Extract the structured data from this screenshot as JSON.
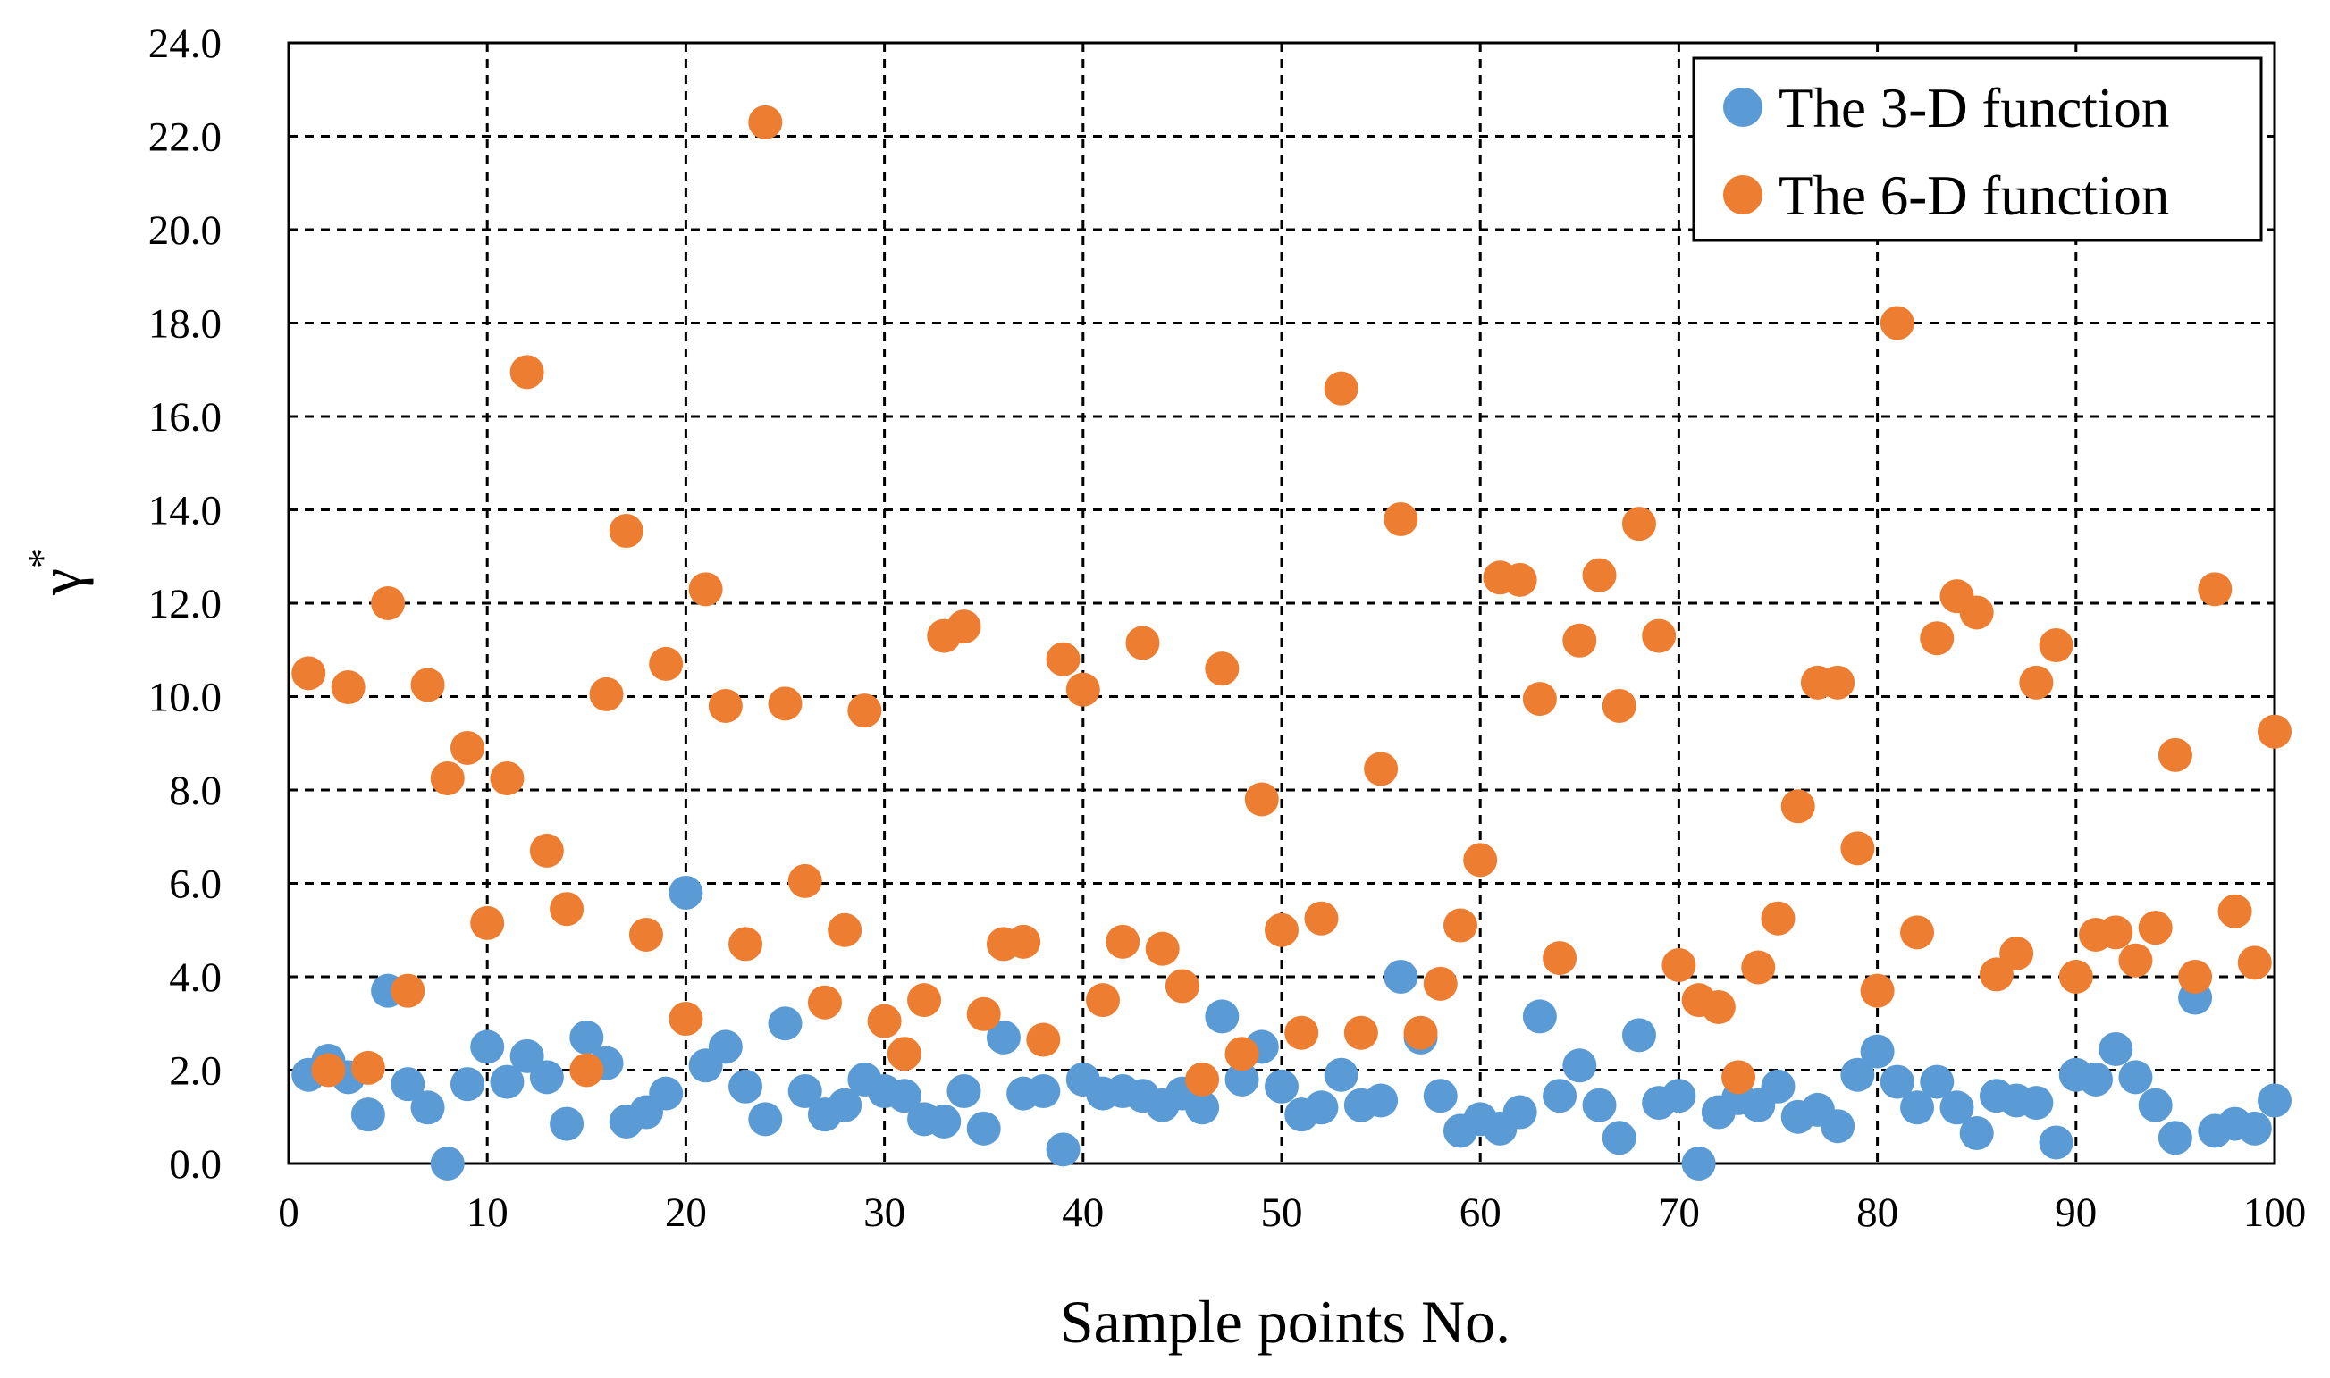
{
  "chart_data": {
    "type": "scatter",
    "title": "",
    "xlabel": "Sample points No.",
    "ylabel": "γ",
    "ylabel_superscript": "*",
    "xlim": [
      0,
      100
    ],
    "ylim": [
      0,
      24
    ],
    "x_ticks": [
      0,
      10,
      20,
      30,
      40,
      50,
      60,
      70,
      80,
      90,
      100
    ],
    "x_tick_labels": [
      "0",
      "10",
      "20",
      "30",
      "40",
      "50",
      "60",
      "70",
      "80",
      "90",
      "100"
    ],
    "y_ticks": [
      0,
      2,
      4,
      6,
      8,
      10,
      12,
      14,
      16,
      18,
      20,
      22,
      24
    ],
    "y_tick_labels": [
      "0.0",
      "2.0",
      "4.0",
      "6.0",
      "8.0",
      "10.0",
      "12.0",
      "14.0",
      "16.0",
      "18.0",
      "20.0",
      "22.0",
      "24.0"
    ],
    "grid": true,
    "legend_position": "top-right",
    "series": [
      {
        "name": "The 3-D function",
        "color": "#5b9bd5",
        "x": [
          1,
          2,
          3,
          4,
          5,
          6,
          7,
          8,
          9,
          10,
          11,
          12,
          13,
          14,
          15,
          16,
          17,
          18,
          19,
          20,
          21,
          22,
          23,
          24,
          25,
          26,
          27,
          28,
          29,
          30,
          31,
          32,
          33,
          34,
          35,
          36,
          37,
          38,
          39,
          40,
          41,
          42,
          43,
          44,
          45,
          46,
          47,
          48,
          49,
          50,
          51,
          52,
          53,
          54,
          55,
          56,
          57,
          58,
          59,
          60,
          61,
          62,
          63,
          64,
          65,
          66,
          67,
          68,
          69,
          70,
          71,
          72,
          73,
          74,
          75,
          76,
          77,
          78,
          79,
          80,
          81,
          82,
          83,
          84,
          85,
          86,
          87,
          88,
          89,
          90,
          91,
          92,
          93,
          94,
          95,
          96,
          97,
          98,
          99,
          100
        ],
        "y": [
          1.9,
          2.2,
          1.85,
          1.05,
          3.7,
          1.7,
          1.2,
          0.0,
          1.7,
          2.5,
          1.75,
          2.3,
          1.85,
          0.85,
          2.7,
          2.15,
          0.9,
          1.1,
          1.5,
          5.8,
          2.1,
          2.5,
          1.65,
          0.95,
          3.0,
          1.55,
          1.05,
          1.25,
          1.8,
          1.55,
          1.45,
          0.95,
          0.9,
          1.55,
          0.75,
          2.7,
          1.5,
          1.55,
          0.3,
          1.8,
          1.5,
          1.55,
          1.45,
          1.25,
          1.5,
          1.2,
          3.15,
          1.8,
          2.5,
          1.65,
          1.05,
          1.2,
          1.9,
          1.25,
          1.35,
          4.0,
          2.7,
          1.45,
          0.7,
          0.95,
          0.75,
          1.1,
          3.15,
          1.45,
          2.1,
          1.25,
          0.55,
          2.75,
          1.3,
          1.45,
          0.0,
          1.1,
          1.4,
          1.25,
          1.65,
          1.0,
          1.15,
          0.8,
          1.9,
          2.4,
          1.75,
          1.2,
          1.75,
          1.2,
          0.65,
          1.45,
          1.35,
          1.3,
          0.45,
          1.9,
          1.8,
          2.45,
          1.85,
          1.25,
          0.55,
          3.55,
          0.7,
          0.85,
          0.75,
          1.35
        ]
      },
      {
        "name": "The 6-D function",
        "color": "#ed7d31",
        "x": [
          1,
          2,
          3,
          4,
          5,
          6,
          7,
          8,
          9,
          10,
          11,
          12,
          13,
          14,
          15,
          16,
          17,
          18,
          19,
          20,
          21,
          22,
          23,
          24,
          25,
          26,
          27,
          28,
          29,
          30,
          31,
          32,
          33,
          34,
          35,
          36,
          37,
          38,
          39,
          40,
          41,
          42,
          43,
          44,
          45,
          46,
          47,
          48,
          49,
          50,
          51,
          52,
          53,
          54,
          55,
          56,
          57,
          58,
          59,
          60,
          61,
          62,
          63,
          64,
          65,
          66,
          67,
          68,
          69,
          70,
          71,
          72,
          73,
          74,
          75,
          76,
          77,
          78,
          79,
          80,
          81,
          82,
          83,
          84,
          85,
          86,
          87,
          88,
          89,
          90,
          91,
          92,
          93,
          94,
          95,
          96,
          97,
          98,
          99,
          100
        ],
        "y": [
          10.5,
          2.0,
          10.2,
          2.05,
          12.0,
          3.7,
          10.25,
          8.25,
          8.9,
          5.15,
          8.25,
          16.95,
          6.7,
          5.45,
          2.0,
          10.05,
          13.55,
          4.9,
          10.7,
          3.1,
          12.3,
          9.8,
          4.7,
          22.3,
          9.85,
          6.05,
          3.45,
          5.0,
          9.7,
          3.05,
          2.35,
          3.5,
          11.3,
          11.5,
          3.2,
          4.7,
          4.75,
          2.65,
          10.8,
          10.15,
          3.5,
          4.75,
          11.15,
          4.6,
          3.8,
          1.8,
          10.6,
          2.35,
          7.8,
          5.0,
          2.8,
          5.25,
          16.6,
          2.8,
          8.45,
          13.8,
          2.8,
          3.85,
          5.1,
          6.5,
          12.55,
          12.5,
          9.95,
          4.4,
          11.2,
          12.6,
          9.8,
          13.7,
          11.3,
          4.25,
          3.5,
          3.35,
          1.85,
          4.2,
          5.25,
          7.65,
          10.3,
          10.3,
          6.75,
          3.7,
          18.0,
          4.95,
          11.25,
          12.15,
          11.8,
          4.05,
          4.5,
          10.3,
          11.1,
          4.0,
          4.9,
          4.95,
          4.35,
          5.05,
          8.75,
          4.0,
          12.3,
          5.4,
          4.3,
          9.25
        ]
      }
    ]
  }
}
